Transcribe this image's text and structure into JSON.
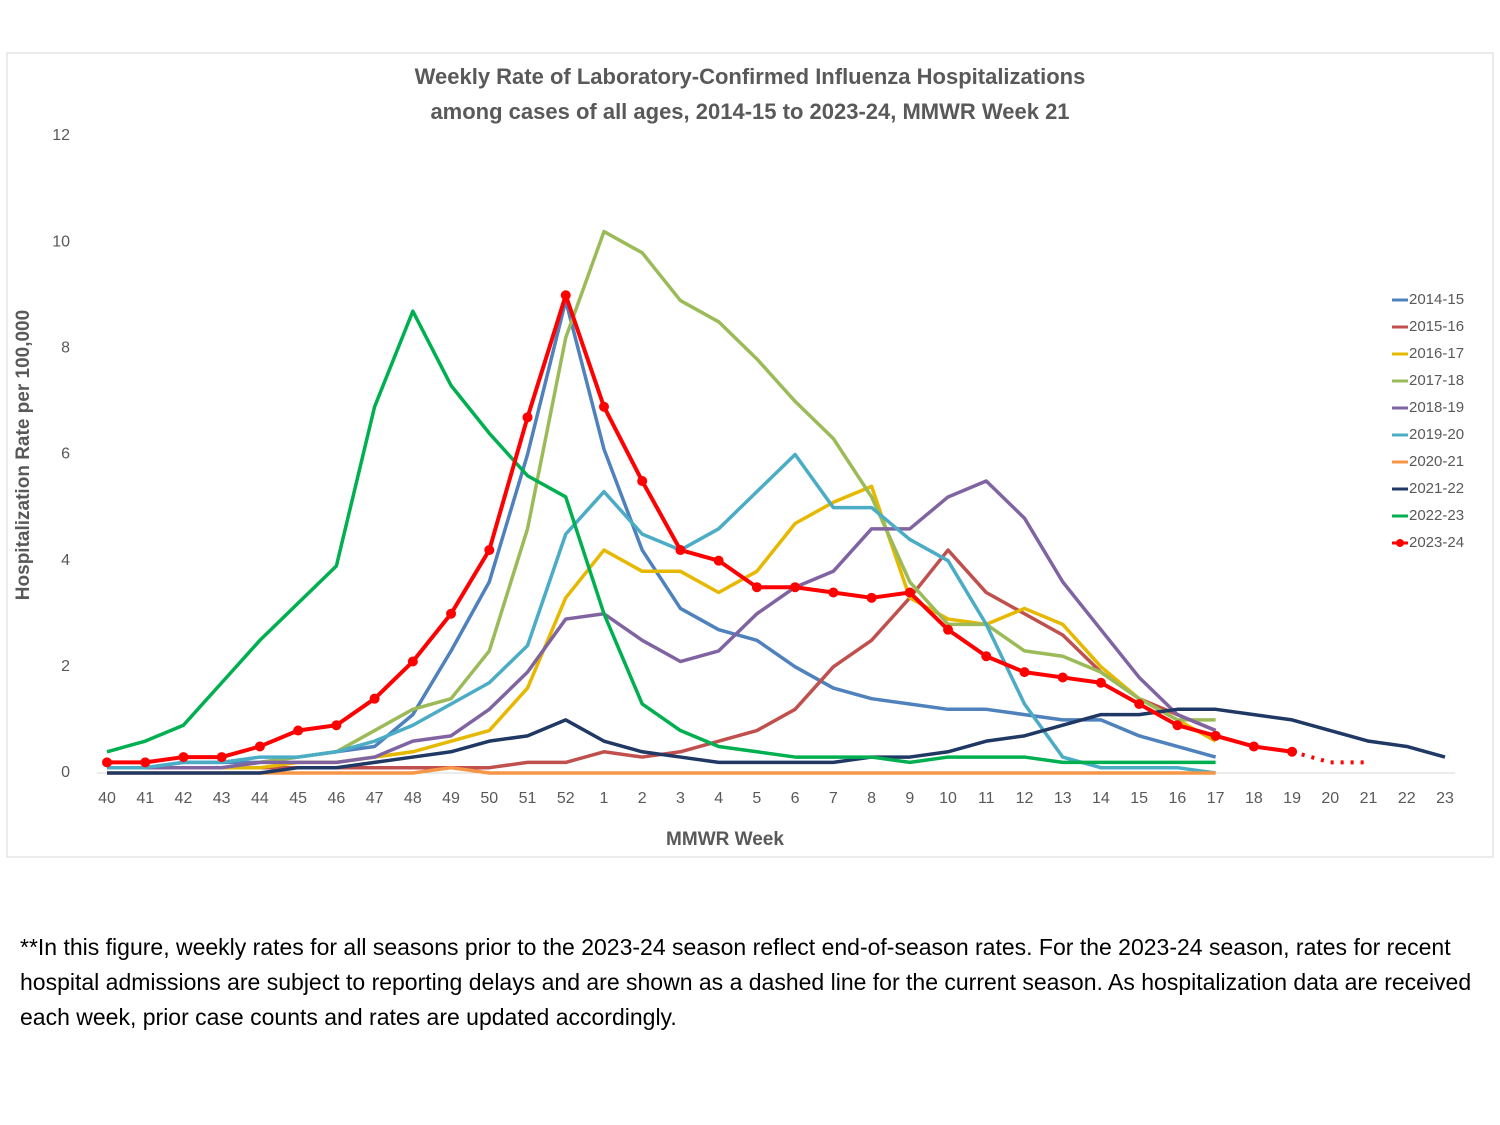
{
  "chart_data": {
    "type": "line",
    "title": [
      "Weekly Rate of Laboratory-Confirmed Influenza Hospitalizations",
      "among cases of all ages, 2014-15 to 2023-24, MMWR Week 21"
    ],
    "xlabel": "MMWR Week",
    "ylabel": "Hospitalization Rate per 100,000",
    "categories": [
      "40",
      "41",
      "42",
      "43",
      "44",
      "45",
      "46",
      "47",
      "48",
      "49",
      "50",
      "51",
      "52",
      "1",
      "2",
      "3",
      "4",
      "5",
      "6",
      "7",
      "8",
      "9",
      "10",
      "11",
      "12",
      "13",
      "14",
      "15",
      "16",
      "17",
      "18",
      "19",
      "20",
      "21",
      "22",
      "23"
    ],
    "ylim": [
      0,
      12
    ],
    "yticks": [
      0,
      2,
      4,
      6,
      8,
      10,
      12
    ],
    "grid": false,
    "legend": "right",
    "series": [
      {
        "name": "2014-15",
        "color": "#4f81bd",
        "values": [
          0.1,
          0.1,
          0.2,
          0.2,
          0.2,
          0.3,
          0.4,
          0.5,
          1.1,
          2.3,
          3.6,
          6.0,
          8.9,
          6.1,
          4.2,
          3.1,
          2.7,
          2.5,
          2.0,
          1.6,
          1.4,
          1.3,
          1.2,
          1.2,
          1.1,
          1.0,
          1.0,
          0.7,
          0.5,
          0.3,
          null,
          null,
          null,
          null,
          null,
          null
        ]
      },
      {
        "name": "2015-16",
        "color": "#c0504d",
        "values": [
          0.1,
          0.1,
          0.1,
          0.1,
          0.1,
          0.1,
          0.1,
          0.1,
          0.1,
          0.1,
          0.1,
          0.2,
          0.2,
          0.4,
          0.3,
          0.4,
          0.6,
          0.8,
          1.2,
          2.0,
          2.5,
          3.3,
          4.2,
          3.4,
          3.0,
          2.6,
          1.9,
          1.4,
          1.1,
          0.8,
          null,
          null,
          null,
          null,
          null,
          null
        ]
      },
      {
        "name": "2016-17",
        "color": "#e6b800",
        "values": [
          0.1,
          0.1,
          0.1,
          0.1,
          0.1,
          0.2,
          0.2,
          0.3,
          0.4,
          0.6,
          0.8,
          1.6,
          3.3,
          4.2,
          3.8,
          3.8,
          3.4,
          3.8,
          4.7,
          5.1,
          5.4,
          3.3,
          2.9,
          2.8,
          3.1,
          2.8,
          2.0,
          1.4,
          1.0,
          0.6,
          null,
          null,
          null,
          null,
          null,
          null
        ]
      },
      {
        "name": "2017-18",
        "color": "#9bbb59",
        "values": [
          0.1,
          0.1,
          0.1,
          0.1,
          0.2,
          0.3,
          0.4,
          0.8,
          1.2,
          1.4,
          2.3,
          4.6,
          8.2,
          10.2,
          9.8,
          8.9,
          8.5,
          7.8,
          7.0,
          6.3,
          5.2,
          3.6,
          2.8,
          2.8,
          2.3,
          2.2,
          1.9,
          1.4,
          1.0,
          1.0,
          null,
          null,
          null,
          null,
          null,
          null
        ]
      },
      {
        "name": "2018-19",
        "color": "#8064a2",
        "values": [
          0.1,
          0.1,
          0.1,
          0.1,
          0.2,
          0.2,
          0.2,
          0.3,
          0.6,
          0.7,
          1.2,
          1.9,
          2.9,
          3.0,
          2.5,
          2.1,
          2.3,
          3.0,
          3.5,
          3.8,
          4.6,
          4.6,
          5.2,
          5.5,
          4.8,
          3.6,
          2.7,
          1.8,
          1.1,
          0.8,
          null,
          null,
          null,
          null,
          null,
          null
        ]
      },
      {
        "name": "2019-20",
        "color": "#4bacc6",
        "values": [
          0.1,
          0.1,
          0.2,
          0.2,
          0.3,
          0.3,
          0.4,
          0.6,
          0.9,
          1.3,
          1.7,
          2.4,
          4.5,
          5.3,
          4.5,
          4.2,
          4.6,
          5.3,
          6.0,
          5.0,
          5.0,
          4.4,
          4.0,
          2.8,
          1.3,
          0.3,
          0.1,
          0.1,
          0.1,
          0.0,
          null,
          null,
          null,
          null,
          null,
          null
        ]
      },
      {
        "name": "2020-21",
        "color": "#f79646",
        "values": [
          0,
          0,
          0,
          0,
          0,
          0,
          0,
          0,
          0,
          0.1,
          0,
          0,
          0,
          0,
          0,
          0,
          0,
          0,
          0,
          0,
          0,
          0,
          0,
          0,
          0,
          0,
          0,
          0,
          0,
          0,
          null,
          null,
          null,
          null,
          null,
          null
        ]
      },
      {
        "name": "2021-22",
        "color": "#1f3864",
        "values": [
          0,
          0,
          0,
          0,
          0,
          0.1,
          0.1,
          0.2,
          0.3,
          0.4,
          0.6,
          0.7,
          1.0,
          0.6,
          0.4,
          0.3,
          0.2,
          0.2,
          0.2,
          0.2,
          0.3,
          0.3,
          0.4,
          0.6,
          0.7,
          0.9,
          1.1,
          1.1,
          1.2,
          1.2,
          1.1,
          1.0,
          0.8,
          0.6,
          0.5,
          0.3
        ]
      },
      {
        "name": "2022-23",
        "color": "#00b050",
        "values": [
          0.4,
          0.6,
          0.9,
          1.7,
          2.5,
          3.2,
          3.9,
          6.9,
          8.7,
          7.3,
          6.4,
          5.6,
          5.2,
          3.0,
          1.3,
          0.8,
          0.5,
          0.4,
          0.3,
          0.3,
          0.3,
          0.2,
          0.3,
          0.3,
          0.3,
          0.2,
          0.2,
          0.2,
          0.2,
          0.2,
          null,
          null,
          null,
          null,
          null,
          null
        ]
      },
      {
        "name": "2023-24",
        "color": "#ff0000",
        "markers": true,
        "dashed_after": 31,
        "values": [
          0.2,
          0.2,
          0.3,
          0.3,
          0.5,
          0.8,
          0.9,
          1.4,
          2.1,
          3.0,
          4.2,
          6.7,
          9.0,
          6.9,
          5.5,
          4.2,
          4.0,
          3.5,
          3.5,
          3.4,
          3.3,
          3.4,
          2.7,
          2.2,
          1.9,
          1.8,
          1.7,
          1.3,
          0.9,
          0.7,
          0.5,
          0.4,
          0.2,
          0.2,
          null,
          null
        ]
      }
    ]
  },
  "footnote": "**In this figure, weekly rates for all seasons prior to the 2023-24 season reflect end-of-season rates. For the 2023-24 season, rates for recent hospital admissions are subject to reporting delays and are shown as a dashed line for the current season. As hospitalization data are received each week, prior case counts and rates are updated accordingly."
}
